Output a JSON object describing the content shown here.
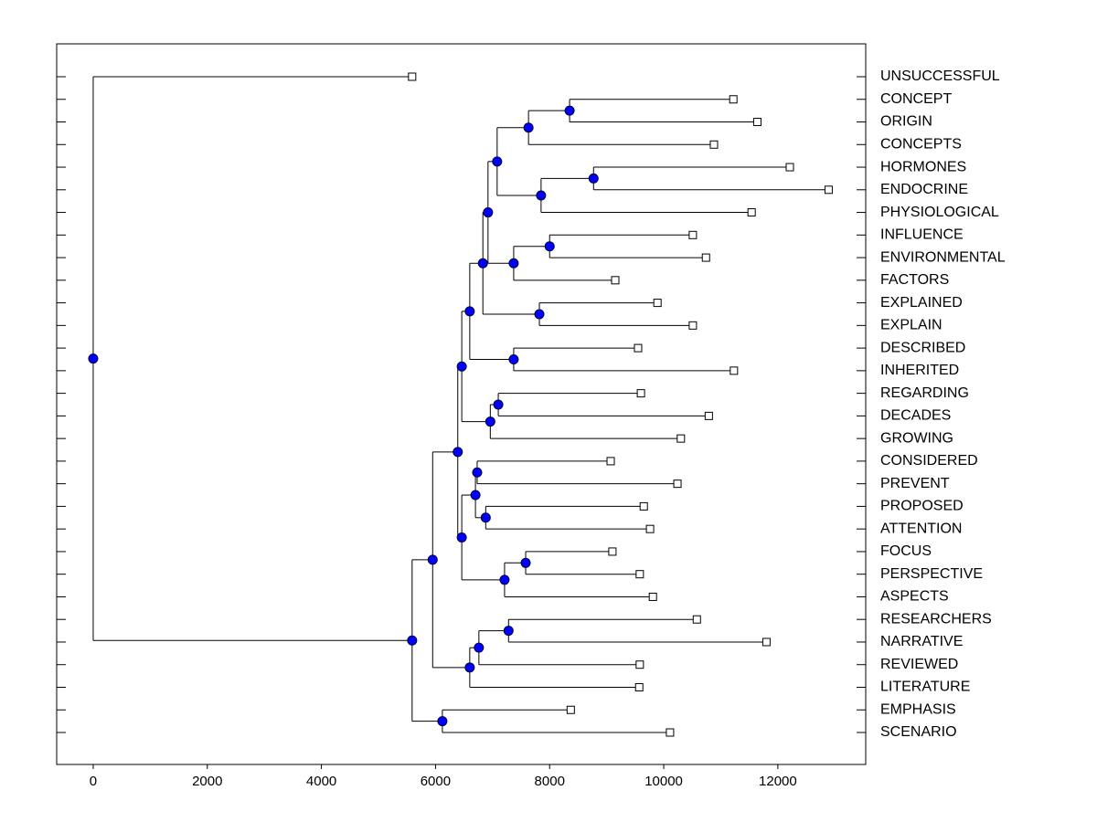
{
  "chart_data": {
    "type": "dendrogram",
    "xlim": [
      -640,
      13540
    ],
    "xticks": [
      0,
      2000,
      4000,
      6000,
      8000,
      10000,
      12000
    ],
    "node_color": "#0000ff",
    "leaf_color": "#ffffff",
    "tree": {
      "value": 0,
      "children": [
        {
          "label": "UNSUCCESSFUL",
          "value": 5590
        },
        {
          "value": 5590,
          "children": [
            {
              "value": 5950,
              "children": [
                {
                  "value": 6390,
                  "children": [
                    {
                      "value": 6460,
                      "children": [
                        {
                          "value": 6600,
                          "children": [
                            {
                              "value": 6830,
                              "children": [
                                {
                                  "value": 6920,
                                  "children": [
                                    {
                                      "value": 7080,
                                      "children": [
                                        {
                                          "value": 7630,
                                          "children": [
                                            {
                                              "value": 8350,
                                              "children": [
                                                {
                                                  "label": "CONCEPT",
                                                  "value": 11220
                                                },
                                                {
                                                  "label": "ORIGIN",
                                                  "value": 11640
                                                }
                                              ]
                                            },
                                            {
                                              "label": "CONCEPTS",
                                              "value": 10880
                                            }
                                          ]
                                        },
                                        {
                                          "value": 7850,
                                          "children": [
                                            {
                                              "value": 8770,
                                              "children": [
                                                {
                                                  "label": "HORMONES",
                                                  "value": 12210
                                                },
                                                {
                                                  "label": "ENDOCRINE",
                                                  "value": 12890
                                                }
                                              ]
                                            },
                                            {
                                              "label": "PHYSIOLOGICAL",
                                              "value": 11540
                                            }
                                          ]
                                        }
                                      ]
                                    },
                                    {
                                      "value": 7370,
                                      "children": [
                                        {
                                          "value": 8000,
                                          "children": [
                                            {
                                              "label": "INFLUENCE",
                                              "value": 10510
                                            },
                                            {
                                              "label": "ENVIRONMENTAL",
                                              "value": 10740
                                            }
                                          ]
                                        },
                                        {
                                          "label": "FACTORS",
                                          "value": 9150
                                        }
                                      ]
                                    }
                                  ]
                                },
                                {
                                  "value": 7820,
                                  "children": [
                                    {
                                      "label": "EXPLAINED",
                                      "value": 9890
                                    },
                                    {
                                      "label": "EXPLAIN",
                                      "value": 10510
                                    }
                                  ]
                                }
                              ]
                            },
                            {
                              "value": 7370,
                              "children": [
                                {
                                  "label": "DESCRIBED",
                                  "value": 9550
                                },
                                {
                                  "label": "INHERITED",
                                  "value": 11230
                                }
                              ]
                            }
                          ]
                        },
                        {
                          "value": 6960,
                          "children": [
                            {
                              "value": 7100,
                              "children": [
                                {
                                  "label": "REGARDING",
                                  "value": 9600
                                },
                                {
                                  "label": "DECADES",
                                  "value": 10790
                                }
                              ]
                            },
                            {
                              "label": "GROWING",
                              "value": 10300
                            }
                          ]
                        }
                      ]
                    },
                    {
                      "value": 6460,
                      "children": [
                        {
                          "value": 6700,
                          "children": [
                            {
                              "value": 6730,
                              "children": [
                                {
                                  "label": "CONSIDERED",
                                  "value": 9070
                                },
                                {
                                  "label": "PREVENT",
                                  "value": 10240
                                }
                              ]
                            },
                            {
                              "value": 6880,
                              "children": [
                                {
                                  "label": "PROPOSED",
                                  "value": 9650
                                },
                                {
                                  "label": "ATTENTION",
                                  "value": 9760
                                }
                              ]
                            }
                          ]
                        },
                        {
                          "value": 7210,
                          "children": [
                            {
                              "value": 7580,
                              "children": [
                                {
                                  "label": "FOCUS",
                                  "value": 9100
                                },
                                {
                                  "label": "PERSPECTIVE",
                                  "value": 9580
                                }
                              ]
                            },
                            {
                              "label": "ASPECTS",
                              "value": 9810
                            }
                          ]
                        }
                      ]
                    }
                  ]
                },
                {
                  "value": 6600,
                  "children": [
                    {
                      "value": 6760,
                      "children": [
                        {
                          "value": 7280,
                          "children": [
                            {
                              "label": "RESEARCHERS",
                              "value": 10580
                            },
                            {
                              "label": "NARRATIVE",
                              "value": 11800
                            }
                          ]
                        },
                        {
                          "label": "REVIEWED",
                          "value": 9580
                        }
                      ]
                    },
                    {
                      "label": "LITERATURE",
                      "value": 9570
                    }
                  ]
                }
              ]
            },
            {
              "value": 6120,
              "children": [
                {
                  "label": "EMPHASIS",
                  "value": 8370
                },
                {
                  "label": "SCENARIO",
                  "value": 10110
                }
              ]
            }
          ]
        }
      ]
    }
  }
}
